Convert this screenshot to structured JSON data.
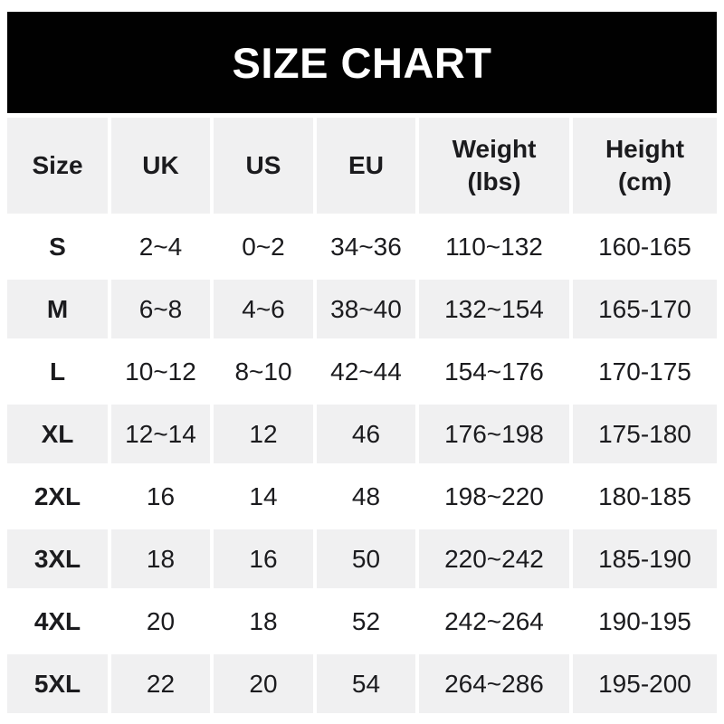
{
  "banner": {
    "title": "SIZE CHART"
  },
  "table": {
    "headers": [
      {
        "label": "Size",
        "sub": ""
      },
      {
        "label": "UK",
        "sub": ""
      },
      {
        "label": "US",
        "sub": ""
      },
      {
        "label": "EU",
        "sub": ""
      },
      {
        "label": "Weight",
        "sub": "(lbs)"
      },
      {
        "label": "Height",
        "sub": "(cm)"
      }
    ]
  },
  "chart_data": {
    "type": "table",
    "title": "SIZE CHART",
    "columns": [
      "Size",
      "UK",
      "US",
      "EU",
      "Weight (lbs)",
      "Height (cm)"
    ],
    "rows": [
      [
        "S",
        "2~4",
        "0~2",
        "34~36",
        "110~132",
        "160-165"
      ],
      [
        "M",
        "6~8",
        "4~6",
        "38~40",
        "132~154",
        "165-170"
      ],
      [
        "L",
        "10~12",
        "8~10",
        "42~44",
        "154~176",
        "170-175"
      ],
      [
        "XL",
        "12~14",
        "12",
        "46",
        "176~198",
        "175-180"
      ],
      [
        "2XL",
        "16",
        "14",
        "48",
        "198~220",
        "180-185"
      ],
      [
        "3XL",
        "18",
        "16",
        "50",
        "220~242",
        "185-190"
      ],
      [
        "4XL",
        "20",
        "18",
        "52",
        "242~264",
        "190-195"
      ],
      [
        "5XL",
        "22",
        "20",
        "54",
        "264~286",
        "195-200"
      ]
    ],
    "layout": {
      "header_row_background": "#f0f0f1",
      "alternating_row_backgrounds": [
        "#ffffff",
        "#f0f0f1"
      ],
      "gridlines": "white gutters between cells"
    }
  },
  "colors": {
    "banner_background": "#010101",
    "banner_text": "#ffffff",
    "row_alt_gray": "#f0f0f1",
    "row_white": "#ffffff",
    "text": "#1b1b1e"
  }
}
